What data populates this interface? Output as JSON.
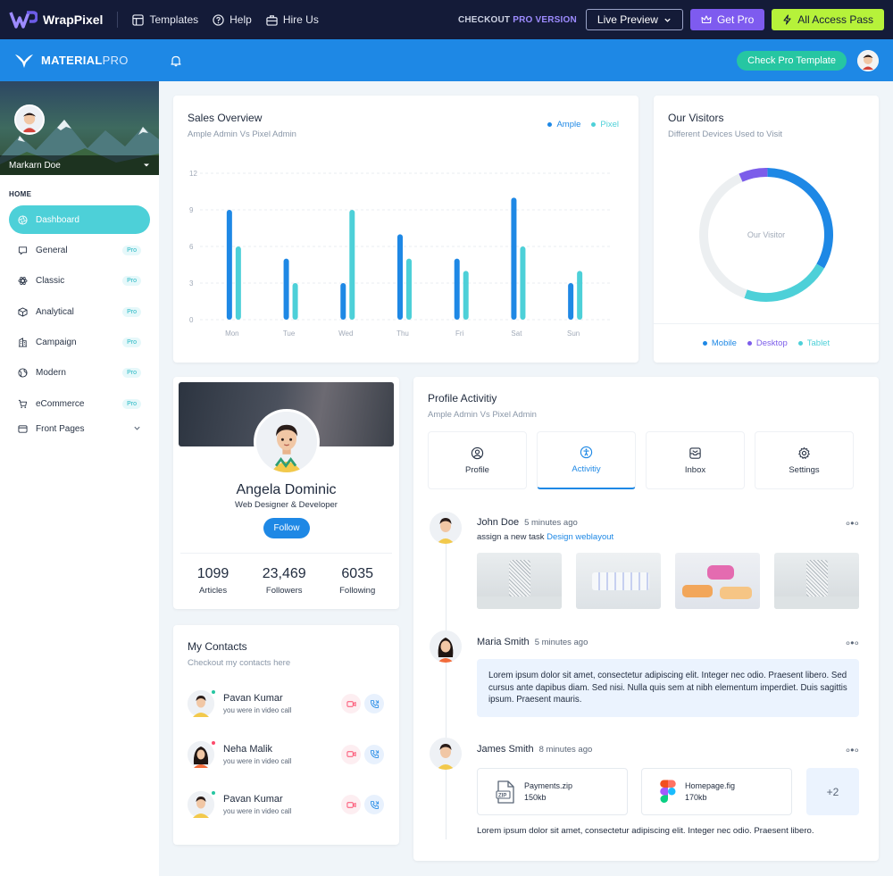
{
  "topbar": {
    "brand": "WrapPixel",
    "links": [
      {
        "label": "Templates",
        "icon": "layout-icon"
      },
      {
        "label": "Help",
        "icon": "help-circle-icon"
      },
      {
        "label": "Hire Us",
        "icon": "briefcase-icon"
      }
    ],
    "checkout_prefix": "CHECKOUT",
    "checkout_pro": "PRO",
    "checkout_suffix": "VERSION",
    "live_preview": "Live Preview",
    "get_pro": "Get Pro",
    "all_access": "All Access Pass"
  },
  "appbar": {
    "brand_main": "MATERIAL",
    "brand_pro": "PRO",
    "check_pro": "Check Pro Template"
  },
  "sidebar": {
    "user_name": "Markarn Doe",
    "heading": "HOME",
    "items": [
      {
        "label": "Dashboard",
        "badge": "",
        "icon": "aperture-icon",
        "active": true
      },
      {
        "label": "General",
        "badge": "Pro",
        "icon": "message-icon"
      },
      {
        "label": "Classic",
        "badge": "Pro",
        "icon": "atom-icon"
      },
      {
        "label": "Analytical",
        "badge": "Pro",
        "icon": "box-icon"
      },
      {
        "label": "Campaign",
        "badge": "Pro",
        "icon": "building-icon"
      },
      {
        "label": "Modern",
        "badge": "Pro",
        "icon": "globe-icon"
      },
      {
        "label": "eCommerce",
        "badge": "Pro",
        "icon": "cart-icon"
      },
      {
        "label": "Front Pages",
        "badge": "",
        "icon": "app-window-icon"
      }
    ]
  },
  "sales": {
    "title": "Sales Overview",
    "subtitle": "Ample Admin Vs Pixel Admin"
  },
  "chart_data": [
    {
      "type": "bar",
      "categories": [
        "Mon",
        "Tue",
        "Wed",
        "Thu",
        "Fri",
        "Sat",
        "Sun"
      ],
      "series": [
        {
          "name": "Ample",
          "values": [
            9,
            5,
            3,
            7,
            5,
            10,
            3
          ],
          "color": "#1e88e5"
        },
        {
          "name": "Pixel",
          "values": [
            6,
            3,
            9,
            5,
            4,
            6,
            4
          ],
          "color": "#4dd0d8"
        }
      ],
      "yticks": [
        "0",
        "3",
        "6",
        "9",
        "12"
      ],
      "ylim": [
        0,
        12
      ],
      "grid": true,
      "legend": "top-right"
    },
    {
      "type": "pie",
      "center_label": "Our Visitor",
      "slices": [
        {
          "name": "Mobile",
          "value": 33,
          "color": "#1e88e5"
        },
        {
          "name": "Tablet",
          "value": 22,
          "color": "#4dd0d8"
        },
        {
          "name": "Other",
          "value": 38,
          "color": "#eceff1"
        },
        {
          "name": "Desktop",
          "value": 7,
          "color": "#7c5dea"
        }
      ],
      "legend": "bottom"
    }
  ],
  "visitors": {
    "title": "Our Visitors",
    "subtitle": "Different Devices Used to Visit",
    "legend": [
      {
        "label": "Mobile",
        "color": "#1e88e5"
      },
      {
        "label": "Desktop",
        "color": "#7c5dea"
      },
      {
        "label": "Tablet",
        "color": "#4dd0d8"
      }
    ]
  },
  "profile": {
    "name": "Angela Dominic",
    "role": "Web Designer & Developer",
    "follow": "Follow",
    "stats": [
      {
        "value": "1099",
        "label": "Articles"
      },
      {
        "value": "23,469",
        "label": "Followers"
      },
      {
        "value": "6035",
        "label": "Following"
      }
    ]
  },
  "contacts": {
    "title": "My Contacts",
    "subtitle": "Checkout my contacts here",
    "items": [
      {
        "name": "Pavan Kumar",
        "sub": "you were in video call",
        "status_color": "#26c6a2"
      },
      {
        "name": "Neha Malik",
        "sub": "you were in video call",
        "status_color": "#fc4b6c"
      },
      {
        "name": "Pavan Kumar",
        "sub": "you were in video call",
        "status_color": "#26c6a2"
      }
    ]
  },
  "activity": {
    "title": "Profile Activitiy",
    "subtitle": "Ample Admin Vs Pixel Admin",
    "tabs": [
      {
        "label": "Profile",
        "icon": "user-icon"
      },
      {
        "label": "Activitiy",
        "icon": "accessibility-icon",
        "active": true
      },
      {
        "label": "Inbox",
        "icon": "inbox-icon"
      },
      {
        "label": "Settings",
        "icon": "gear-icon"
      }
    ],
    "entries": [
      {
        "name": "John Doe",
        "time": "5 minutes ago",
        "text": "assign a new task",
        "link": "Design weblayout"
      },
      {
        "name": "Maria Smith",
        "time": "5 minutes ago",
        "message": "Lorem ipsum dolor sit amet, consectetur adipiscing elit. Integer nec odio. Praesent libero. Sed cursus ante dapibus diam. Sed nisi. Nulla quis sem at nibh elementum imperdiet. Duis sagittis ipsum. Praesent mauris."
      },
      {
        "name": "James Smith",
        "time": "8 minutes ago",
        "files": [
          {
            "name": "Payments.zip",
            "size": "150kb",
            "icon": "zip-file-icon"
          },
          {
            "name": "Homepage.fig",
            "size": "170kb",
            "icon": "figma-icon"
          }
        ],
        "more": "+2",
        "footer": "Lorem ipsum dolor sit amet, consectetur adipiscing elit. Integer nec odio. Praesent libero."
      }
    ]
  }
}
